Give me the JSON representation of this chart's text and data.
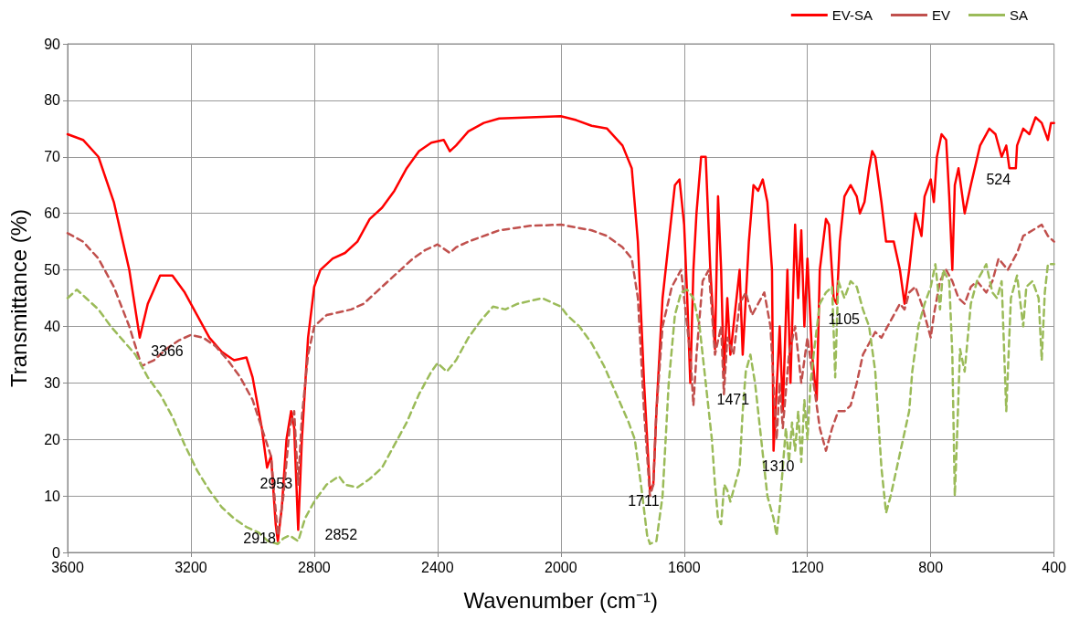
{
  "chart_data": {
    "type": "line",
    "xlabel": "Wavenumber (cm⁻¹)",
    "ylabel": "Transmittance (%)",
    "xlim": [
      3600,
      400
    ],
    "xticks": [
      3600,
      3200,
      2800,
      2400,
      2000,
      1600,
      1200,
      800,
      400
    ],
    "ylim": [
      0,
      90
    ],
    "yticks": [
      0,
      10,
      20,
      30,
      40,
      50,
      60,
      70,
      80,
      90
    ],
    "grid": true,
    "legend": "top right",
    "series": [
      {
        "name": "EV-SA",
        "color": "#ff0000",
        "line_style": "solid",
        "x": [
          3600,
          3550,
          3500,
          3450,
          3400,
          3366,
          3340,
          3300,
          3260,
          3220,
          3180,
          3140,
          3100,
          3060,
          3020,
          3000,
          2970,
          2953,
          2940,
          2925,
          2918,
          2905,
          2890,
          2875,
          2865,
          2852,
          2840,
          2820,
          2800,
          2780,
          2740,
          2700,
          2660,
          2620,
          2580,
          2540,
          2500,
          2460,
          2420,
          2380,
          2360,
          2340,
          2300,
          2250,
          2200,
          2100,
          2000,
          1950,
          1900,
          1850,
          1800,
          1770,
          1750,
          1730,
          1711,
          1700,
          1690,
          1670,
          1650,
          1630,
          1615,
          1600,
          1590,
          1580,
          1570,
          1560,
          1545,
          1530,
          1515,
          1500,
          1490,
          1480,
          1471,
          1460,
          1450,
          1440,
          1420,
          1410,
          1390,
          1375,
          1360,
          1345,
          1330,
          1315,
          1310,
          1290,
          1280,
          1265,
          1255,
          1240,
          1230,
          1220,
          1210,
          1200,
          1185,
          1170,
          1160,
          1140,
          1130,
          1115,
          1105,
          1095,
          1080,
          1060,
          1040,
          1030,
          1015,
          1000,
          990,
          980,
          960,
          945,
          920,
          900,
          885,
          870,
          850,
          830,
          820,
          800,
          790,
          780,
          765,
          750,
          740,
          730,
          722,
          710,
          700,
          690,
          670,
          640,
          610,
          590,
          570,
          555,
          545,
          524,
          520,
          500,
          480,
          460,
          440,
          420,
          410,
          400
        ],
        "values": [
          74,
          73,
          70,
          62,
          50,
          38,
          44,
          49,
          49,
          46,
          42,
          38,
          35.5,
          34,
          34.5,
          31,
          22,
          15,
          17,
          5,
          2,
          8,
          20,
          25,
          22,
          4,
          20,
          38,
          47,
          50,
          52,
          53,
          55,
          59,
          61,
          64,
          68,
          71,
          72.5,
          73,
          71,
          72,
          74.5,
          76,
          76.8,
          77,
          77.2,
          76.5,
          75.5,
          75,
          72,
          68,
          55,
          30,
          11,
          12,
          25,
          45,
          55,
          65,
          66,
          58,
          45,
          30,
          50,
          60,
          70,
          70,
          50,
          36,
          63,
          50,
          31,
          45,
          35,
          40,
          50,
          35,
          55,
          65,
          64,
          66,
          62,
          50,
          18,
          40,
          25,
          50,
          30,
          58,
          45,
          57,
          40,
          52,
          35,
          27,
          50,
          59,
          58,
          45,
          44,
          55,
          63,
          65,
          63,
          60,
          62,
          68,
          71,
          70,
          62,
          55,
          55,
          50,
          44,
          50,
          60,
          56,
          63,
          66,
          62,
          70,
          74,
          73,
          63,
          50,
          65,
          68,
          64,
          60,
          65,
          72,
          75,
          74,
          70,
          72,
          68,
          68,
          72,
          75,
          74,
          77,
          76,
          73,
          76,
          76
        ]
      },
      {
        "name": "EV",
        "color": "#c0504d",
        "line_style": "dashed",
        "x": [
          3600,
          3550,
          3500,
          3450,
          3400,
          3360,
          3320,
          3280,
          3240,
          3200,
          3160,
          3120,
          3080,
          3040,
          3000,
          2970,
          2940,
          2918,
          2900,
          2880,
          2865,
          2852,
          2840,
          2820,
          2800,
          2760,
          2720,
          2680,
          2640,
          2600,
          2560,
          2520,
          2480,
          2440,
          2400,
          2360,
          2340,
          2300,
          2200,
          2100,
          2000,
          1950,
          1900,
          1850,
          1800,
          1770,
          1750,
          1730,
          1711,
          1700,
          1690,
          1670,
          1640,
          1610,
          1600,
          1580,
          1570,
          1560,
          1540,
          1520,
          1500,
          1480,
          1471,
          1460,
          1440,
          1420,
          1400,
          1380,
          1360,
          1340,
          1320,
          1300,
          1290,
          1280,
          1260,
          1240,
          1220,
          1200,
          1180,
          1160,
          1140,
          1120,
          1100,
          1080,
          1060,
          1040,
          1020,
          1000,
          980,
          960,
          940,
          920,
          900,
          885,
          870,
          850,
          830,
          810,
          800,
          790,
          770,
          750,
          730,
          710,
          690,
          670,
          650,
          620,
          600,
          580,
          550,
          520,
          500,
          470,
          440,
          420,
          400
        ],
        "values": [
          56.5,
          55,
          52,
          47,
          40,
          33,
          34,
          36,
          37.5,
          38.5,
          38,
          36.5,
          34,
          31,
          27,
          22,
          17,
          3,
          10,
          22,
          25,
          12,
          24,
          35,
          40,
          42,
          42.5,
          43,
          44,
          46,
          48,
          50,
          52,
          53.5,
          54.5,
          53,
          54,
          55,
          57,
          57.8,
          58,
          57.5,
          57,
          56,
          54,
          52,
          45,
          25,
          10,
          12,
          25,
          40,
          47,
          50,
          45,
          35,
          26,
          35,
          48,
          50,
          35,
          40,
          28,
          38,
          35,
          44,
          46,
          42,
          44,
          46,
          40,
          20,
          30,
          22,
          35,
          40,
          30,
          38,
          30,
          22,
          18,
          22,
          25,
          25,
          26,
          30,
          35,
          37,
          39,
          38,
          40,
          42,
          44,
          43,
          46,
          47,
          44,
          40,
          38,
          42,
          48,
          50,
          48,
          45,
          44,
          47,
          48,
          46,
          48,
          52,
          50,
          53,
          56,
          57,
          58,
          56,
          55
        ]
      },
      {
        "name": "SA",
        "color": "#9bbb59",
        "line_style": "dashed",
        "x": [
          3600,
          3570,
          3540,
          3500,
          3460,
          3420,
          3380,
          3340,
          3300,
          3260,
          3220,
          3180,
          3140,
          3100,
          3060,
          3020,
          2980,
          2950,
          2918,
          2900,
          2880,
          2852,
          2830,
          2800,
          2760,
          2720,
          2700,
          2660,
          2620,
          2580,
          2540,
          2500,
          2460,
          2420,
          2400,
          2370,
          2340,
          2300,
          2260,
          2220,
          2180,
          2140,
          2100,
          2060,
          2040,
          2000,
          1980,
          1940,
          1900,
          1860,
          1820,
          1780,
          1760,
          1740,
          1720,
          1711,
          1690,
          1670,
          1650,
          1630,
          1610,
          1590,
          1570,
          1550,
          1530,
          1510,
          1500,
          1490,
          1480,
          1470,
          1460,
          1450,
          1440,
          1420,
          1410,
          1400,
          1385,
          1370,
          1350,
          1330,
          1310,
          1300,
          1290,
          1280,
          1270,
          1260,
          1250,
          1240,
          1230,
          1220,
          1210,
          1200,
          1190,
          1180,
          1160,
          1140,
          1120,
          1110,
          1100,
          1080,
          1060,
          1040,
          1020,
          1000,
          980,
          960,
          945,
          930,
          910,
          890,
          870,
          860,
          840,
          820,
          800,
          785,
          770,
          760,
          740,
          730,
          722,
          715,
          705,
          690,
          670,
          650,
          620,
          600,
          585,
          570,
          555,
          540,
          520,
          500,
          490,
          470,
          450,
          440,
          430,
          420,
          400
        ],
        "values": [
          45,
          46.5,
          45,
          43,
          40,
          37.5,
          35,
          31,
          28,
          24,
          19,
          14.5,
          11,
          8,
          6,
          4.5,
          3.5,
          2,
          1.5,
          2.5,
          3,
          2,
          6,
          9,
          12,
          13.5,
          12,
          11.5,
          13,
          15,
          19,
          23,
          28,
          32,
          33.5,
          32,
          34,
          38,
          41,
          43.5,
          43,
          44,
          44.5,
          45,
          44.5,
          43.5,
          42,
          40,
          37,
          33,
          28,
          23,
          20,
          12,
          3,
          1.5,
          2,
          10,
          30,
          42,
          46,
          46.5,
          45,
          40,
          30,
          20,
          12,
          6,
          5,
          12,
          11,
          9,
          11,
          15,
          25,
          32,
          35,
          30,
          20,
          10,
          6,
          3,
          8,
          15,
          22,
          16,
          23,
          18,
          25,
          16,
          27,
          20,
          30,
          35,
          44,
          46,
          47,
          31,
          48,
          45,
          48,
          47,
          43,
          40,
          32,
          15,
          7,
          10,
          15,
          20,
          25,
          32,
          40,
          44,
          47,
          51,
          43,
          50,
          48,
          35,
          10,
          20,
          36,
          32,
          44,
          48,
          51,
          46,
          45,
          48,
          25,
          45,
          49,
          40,
          47,
          48,
          45,
          34,
          46,
          51,
          51
        ]
      }
    ],
    "annotations": [
      {
        "text": "3366",
        "x": 3366,
        "y": 38
      },
      {
        "text": "2953",
        "x": 2953,
        "y": 15
      },
      {
        "text": "2918",
        "x": 2918,
        "y": 2
      },
      {
        "text": "2852",
        "x": 2852,
        "y": 4
      },
      {
        "text": "1711",
        "x": 1711,
        "y": 11
      },
      {
        "text": "1471",
        "x": 1471,
        "y": 31
      },
      {
        "text": "1310",
        "x": 1310,
        "y": 18
      },
      {
        "text": "1105",
        "x": 1105,
        "y": 44
      },
      {
        "text": "524",
        "x": 524,
        "y": 68
      }
    ]
  }
}
